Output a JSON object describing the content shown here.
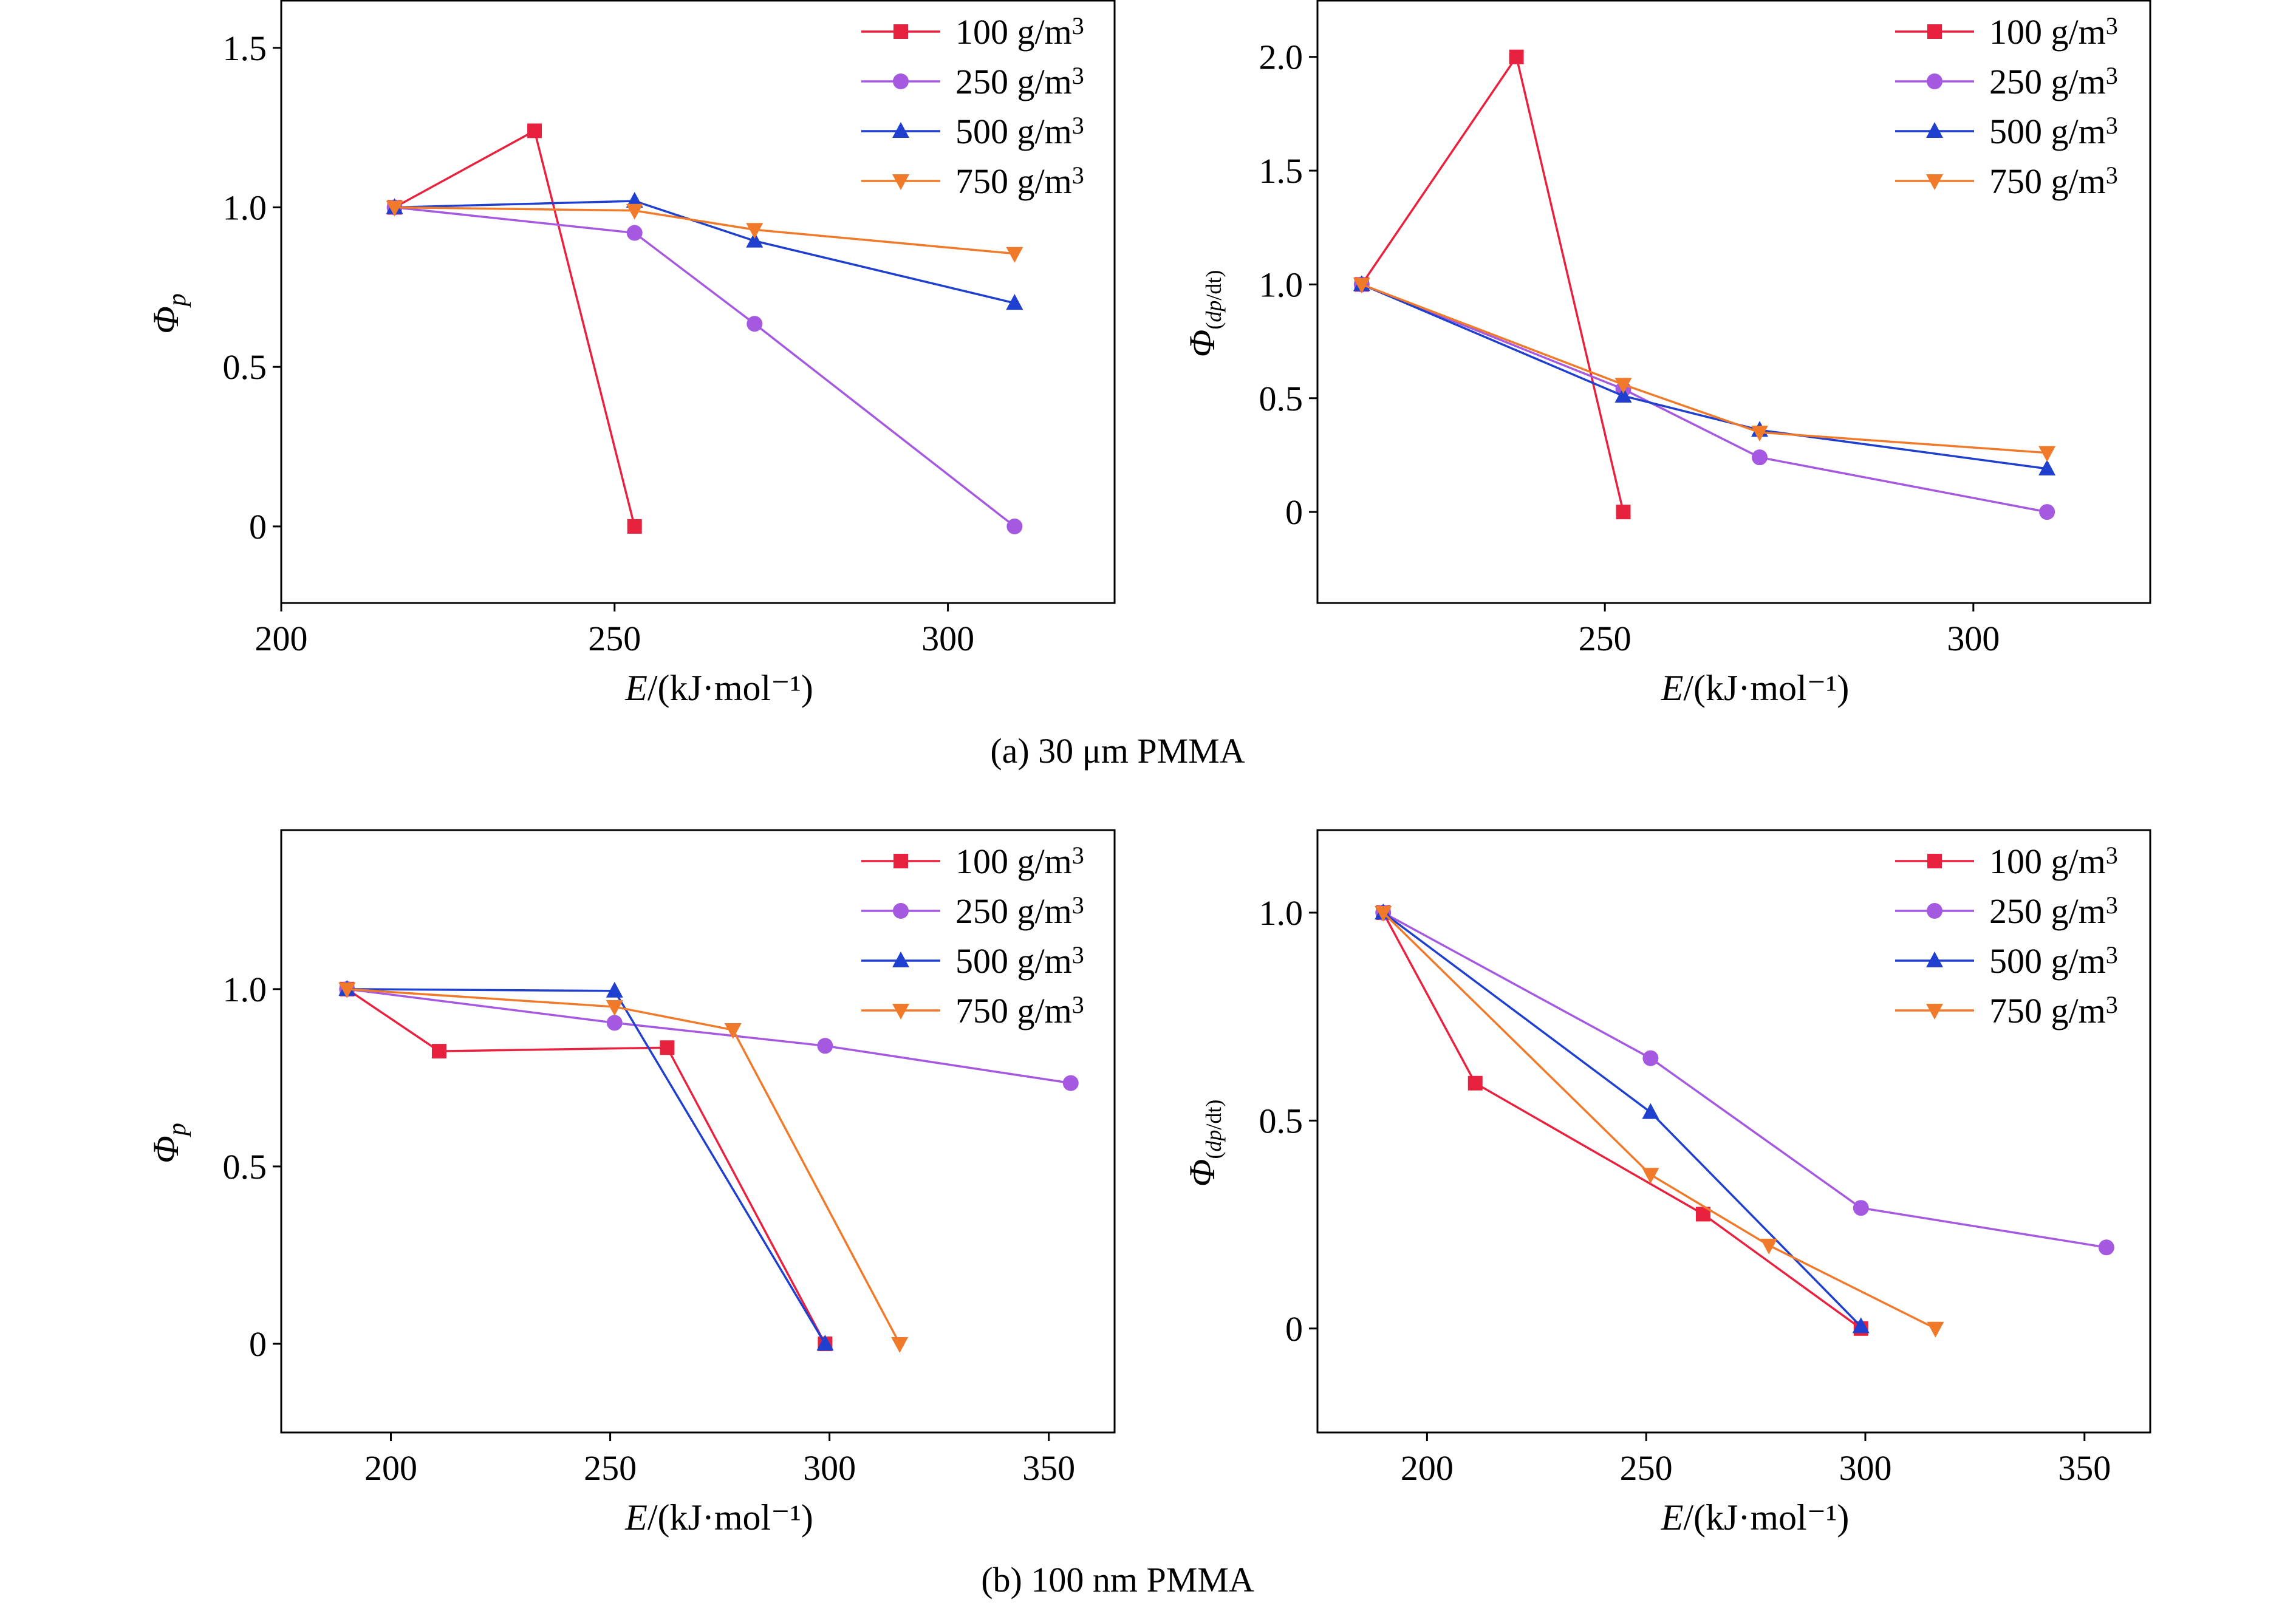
{
  "captions": [
    "(a) 30 μm PMMA",
    "(b) 100 nm PMMA"
  ],
  "colors": {
    "100 g/m3": "#e8213f",
    "250 g/m3": "#a559e0",
    "500 g/m3": "#1f3fcf",
    "750 g/m3": "#f07a2a"
  },
  "chart_data": [
    {
      "id": "a-left",
      "type": "line",
      "xlabel": "E/(kJ·mol⁻¹)",
      "ylabel": "Φp",
      "xlim": [
        200,
        325
      ],
      "ylim": [
        -0.24,
        1.65
      ],
      "xticks": [
        200,
        250,
        300
      ],
      "yticks": [
        0,
        0.5,
        1.0,
        1.5
      ],
      "ytick_labels": [
        "0",
        "0.5",
        "1.0",
        "1.5"
      ],
      "legend": "top-right",
      "series": [
        {
          "name": "100 g/m3",
          "marker": "square",
          "points": [
            [
              217,
              1.0
            ],
            [
              238,
              1.24
            ],
            [
              253,
              0.0
            ]
          ]
        },
        {
          "name": "250 g/m3",
          "marker": "circle",
          "points": [
            [
              217,
              1.0
            ],
            [
              253,
              0.92
            ],
            [
              271,
              0.635
            ],
            [
              310,
              0.0
            ]
          ]
        },
        {
          "name": "500 g/m3",
          "marker": "triangle-up",
          "points": [
            [
              217,
              1.0
            ],
            [
              253,
              1.02
            ],
            [
              271,
              0.895
            ],
            [
              310,
              0.7
            ]
          ]
        },
        {
          "name": "750 g/m3",
          "marker": "triangle-down",
          "points": [
            [
              217,
              1.0
            ],
            [
              253,
              0.99
            ],
            [
              271,
              0.93
            ],
            [
              310,
              0.855
            ]
          ]
        }
      ]
    },
    {
      "id": "a-right",
      "type": "line",
      "xlabel": "E/(kJ·mol⁻¹)",
      "ylabel": "Φ(dp/dt)",
      "xlim": [
        211,
        324
      ],
      "ylim": [
        -0.4,
        2.25
      ],
      "xticks": [
        250,
        300
      ],
      "yticks": [
        0,
        0.5,
        1.0,
        1.5,
        2.0
      ],
      "ytick_labels": [
        "0",
        "0.5",
        "1.0",
        "1.5",
        "2.0"
      ],
      "legend": "top-right",
      "series": [
        {
          "name": "100 g/m3",
          "marker": "square",
          "points": [
            [
              217,
              1.0
            ],
            [
              238,
              2.0
            ],
            [
              252.5,
              0.0
            ]
          ]
        },
        {
          "name": "250 g/m3",
          "marker": "circle",
          "points": [
            [
              217,
              1.0
            ],
            [
              252.5,
              0.54
            ],
            [
              271,
              0.24
            ],
            [
              310,
              0.0
            ]
          ]
        },
        {
          "name": "500 g/m3",
          "marker": "triangle-up",
          "points": [
            [
              217,
              1.0
            ],
            [
              252.5,
              0.51
            ],
            [
              271,
              0.36
            ],
            [
              310,
              0.19
            ]
          ]
        },
        {
          "name": "750 g/m3",
          "marker": "triangle-down",
          "points": [
            [
              217,
              1.0
            ],
            [
              252.5,
              0.56
            ],
            [
              271,
              0.35
            ],
            [
              310,
              0.26
            ]
          ]
        }
      ]
    },
    {
      "id": "b-left",
      "type": "line",
      "xlabel": "E/(kJ·mol⁻¹)",
      "ylabel": "Φp",
      "xlim": [
        175,
        365
      ],
      "ylim": [
        -0.25,
        1.45
      ],
      "xticks": [
        200,
        250,
        300,
        350
      ],
      "yticks": [
        0,
        0.5,
        1.0
      ],
      "ytick_labels": [
        "0",
        "0.5",
        "1.0"
      ],
      "legend": "top-right",
      "series": [
        {
          "name": "100 g/m3",
          "marker": "square",
          "points": [
            [
              190,
              1.0
            ],
            [
              211,
              0.825
            ],
            [
              263,
              0.835
            ],
            [
              299,
              0.0
            ]
          ]
        },
        {
          "name": "250 g/m3",
          "marker": "circle",
          "points": [
            [
              190,
              1.0
            ],
            [
              251,
              0.905
            ],
            [
              299,
              0.84
            ],
            [
              355,
              0.735
            ]
          ]
        },
        {
          "name": "500 g/m3",
          "marker": "triangle-up",
          "points": [
            [
              190,
              1.0
            ],
            [
              251,
              0.995
            ],
            [
              299,
              0.0
            ]
          ]
        },
        {
          "name": "750 g/m3",
          "marker": "triangle-down",
          "points": [
            [
              190,
              1.0
            ],
            [
              251,
              0.95
            ],
            [
              278,
              0.885
            ],
            [
              316,
              0.0
            ]
          ]
        }
      ]
    },
    {
      "id": "b-right",
      "type": "line",
      "xlabel": "E/(kJ·mol⁻¹)",
      "ylabel": "Φ(dp/dt)",
      "xlim": [
        175,
        365
      ],
      "ylim": [
        -0.25,
        1.2
      ],
      "xticks": [
        200,
        250,
        300,
        350
      ],
      "yticks": [
        0,
        0.5,
        1.0
      ],
      "ytick_labels": [
        "0",
        "0.5",
        "1.0"
      ],
      "legend": "top-right",
      "series": [
        {
          "name": "100 g/m3",
          "marker": "square",
          "points": [
            [
              190,
              1.0
            ],
            [
              211,
              0.59
            ],
            [
              263,
              0.275
            ],
            [
              299,
              0.0
            ]
          ]
        },
        {
          "name": "250 g/m3",
          "marker": "circle",
          "points": [
            [
              190,
              1.0
            ],
            [
              251,
              0.65
            ],
            [
              299,
              0.29
            ],
            [
              355,
              0.195
            ]
          ]
        },
        {
          "name": "500 g/m3",
          "marker": "triangle-up",
          "points": [
            [
              190,
              1.0
            ],
            [
              251,
              0.52
            ],
            [
              299,
              0.005
            ]
          ]
        },
        {
          "name": "750 g/m3",
          "marker": "triangle-down",
          "points": [
            [
              190,
              1.0
            ],
            [
              251,
              0.37
            ],
            [
              278,
              0.2
            ],
            [
              316,
              0.0
            ]
          ]
        }
      ]
    }
  ]
}
